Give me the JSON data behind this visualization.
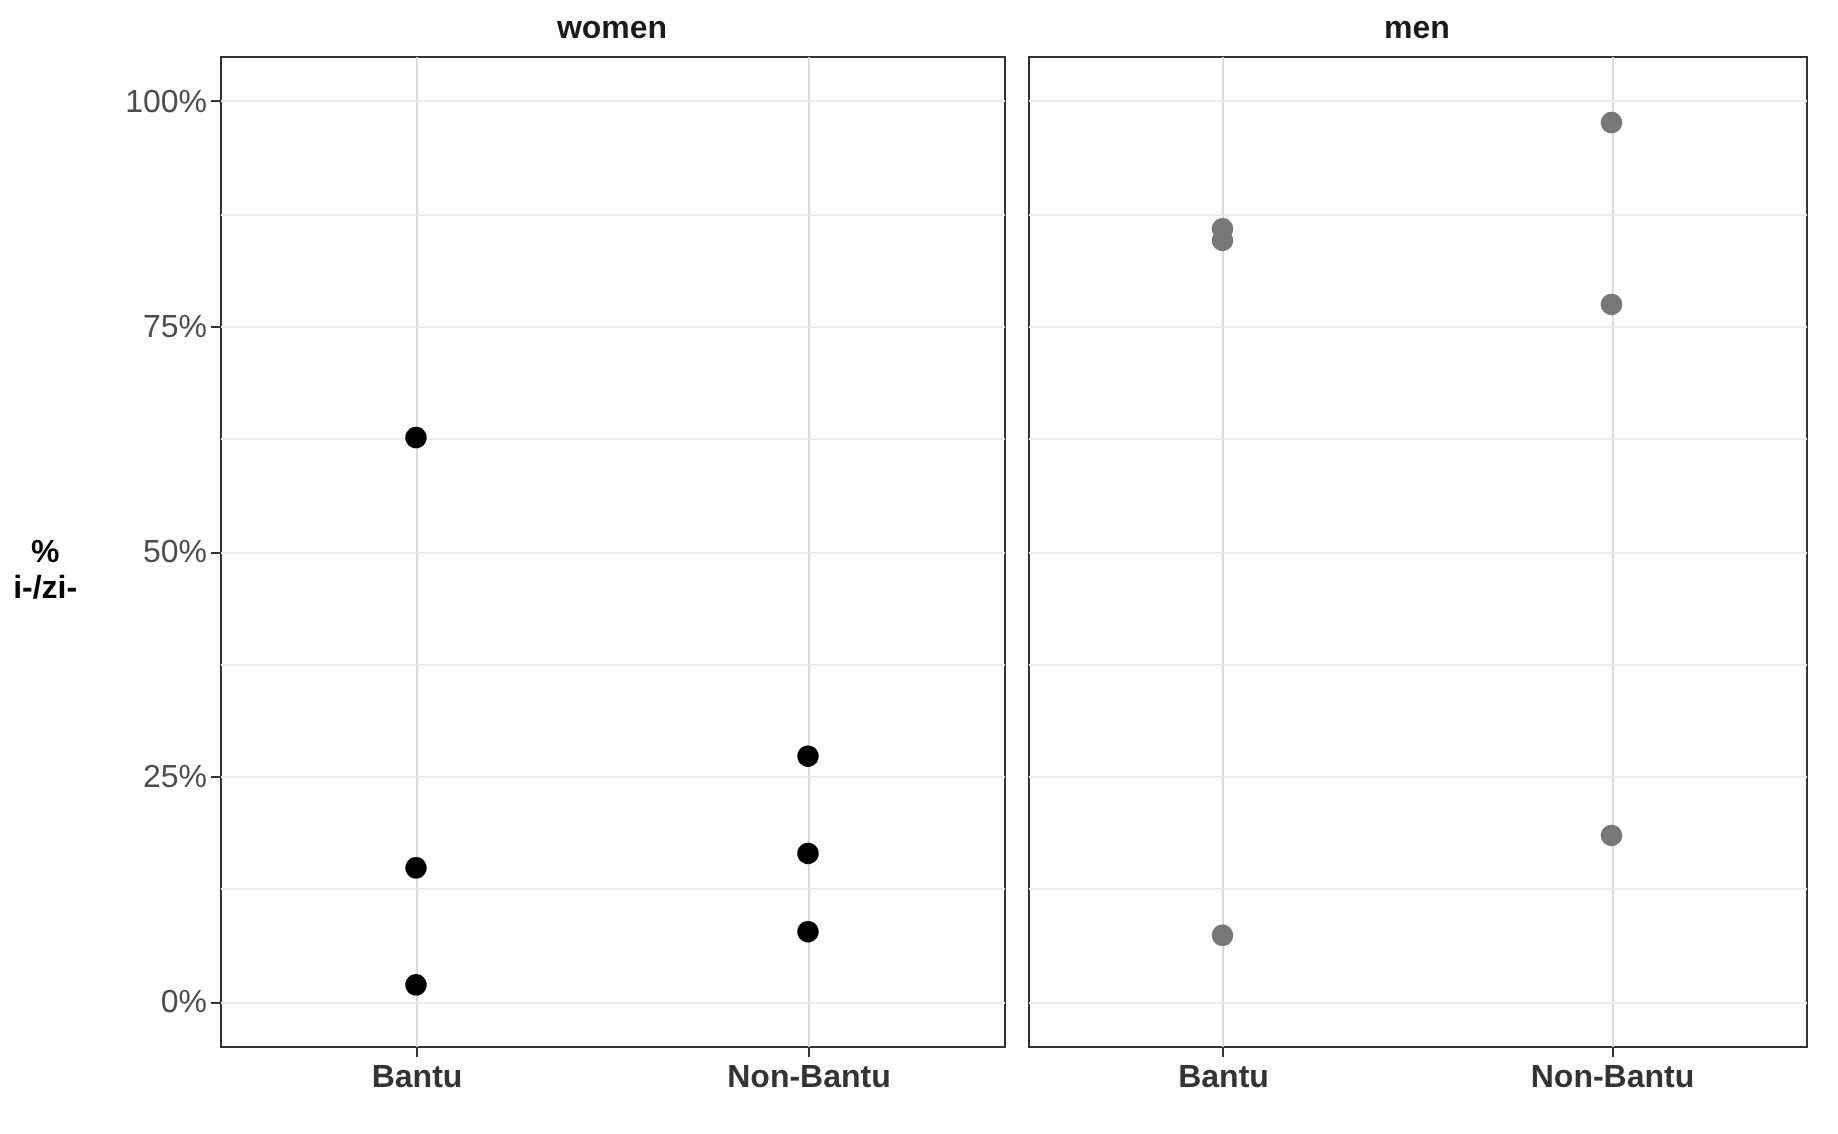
{
  "chart_data": [
    {
      "type": "scatter",
      "title": "women",
      "ylabel": "%\ni-/zi-",
      "categories": [
        "Bantu",
        "Non-Bantu"
      ],
      "series": [
        {
          "color": "#000000",
          "values": [
            62.6,
            27.2
          ]
        },
        {
          "color": "#000000",
          "values": [
            14.8,
            16.4
          ]
        },
        {
          "color": "#000000",
          "values": [
            1.8,
            7.7
          ]
        }
      ],
      "ylim": [
        -5,
        105
      ],
      "yticks": [
        {
          "value": 0,
          "label": "0%"
        },
        {
          "value": 12.5,
          "label": null
        },
        {
          "value": 25,
          "label": "25%"
        },
        {
          "value": 37.5,
          "label": null
        },
        {
          "value": 50,
          "label": "50%"
        },
        {
          "value": 62.5,
          "label": null
        },
        {
          "value": 75,
          "label": "75%"
        },
        {
          "value": 87.5,
          "label": null
        },
        {
          "value": 100,
          "label": "100%"
        }
      ],
      "grid": true,
      "marker": "circle"
    },
    {
      "type": "scatter",
      "title": "men",
      "categories": [
        "Bantu",
        "Non-Bantu"
      ],
      "series": [
        {
          "color": "#777777",
          "values": [
            84.5,
            97.6
          ]
        },
        {
          "color": "#777777",
          "values": [
            85.8,
            77.4
          ]
        },
        {
          "color": "#777777",
          "values": [
            7.3,
            18.4
          ]
        }
      ],
      "ylim": [
        -5,
        105
      ],
      "yticks": [
        0,
        12.5,
        25,
        37.5,
        50,
        62.5,
        75,
        87.5,
        100
      ],
      "grid": true,
      "marker": "circle",
      "tick_labels": "x"
    }
  ]
}
